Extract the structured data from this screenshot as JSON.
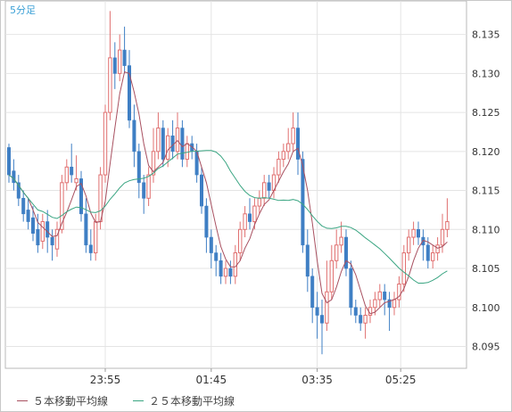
{
  "timeframe_label": "5分足",
  "chart_data": {
    "type": "candlestick",
    "x_tick_labels": [
      "23:55",
      "01:45",
      "03:35",
      "05:25"
    ],
    "y_ticks": [
      8.095,
      8.1,
      8.105,
      8.11,
      8.115,
      8.12,
      8.125,
      8.13,
      8.135
    ],
    "ylim": [
      8.0922,
      8.1393
    ],
    "grid": true,
    "legend_position": "bottom",
    "colors": {
      "up": "#e07070",
      "down": "#3f7fc4",
      "ma5": "#a85060",
      "ma25": "#3aa582",
      "label_accent": "#3ba0d6"
    },
    "candles": [
      [
        8.1205,
        8.117,
        8.121,
        8.116
      ],
      [
        8.1175,
        8.116,
        8.119,
        8.115
      ],
      [
        8.116,
        8.114,
        8.117,
        8.113
      ],
      [
        8.114,
        8.112,
        8.115,
        8.111
      ],
      [
        8.1125,
        8.111,
        8.114,
        8.11
      ],
      [
        8.1115,
        8.1095,
        8.113,
        8.1085
      ],
      [
        8.11,
        8.108,
        8.112,
        8.107
      ],
      [
        8.1085,
        8.111,
        8.112,
        8.1075
      ],
      [
        8.111,
        8.109,
        8.1125,
        8.107
      ],
      [
        8.109,
        8.108,
        8.11,
        8.106
      ],
      [
        8.1075,
        8.11,
        8.111,
        8.1065
      ],
      [
        8.11,
        8.116,
        8.117,
        8.1095
      ],
      [
        8.116,
        8.118,
        8.119,
        8.115
      ],
      [
        8.118,
        8.117,
        8.121,
        8.116
      ],
      [
        8.116,
        8.1165,
        8.1195,
        8.115
      ],
      [
        8.1165,
        8.112,
        8.1175,
        8.111
      ],
      [
        8.112,
        8.108,
        8.114,
        8.107
      ],
      [
        8.108,
        8.107,
        8.11,
        8.106
      ],
      [
        8.107,
        8.111,
        8.112,
        8.106
      ],
      [
        8.111,
        8.117,
        8.118,
        8.11
      ],
      [
        8.117,
        8.125,
        8.126,
        8.116
      ],
      [
        8.125,
        8.132,
        8.138,
        8.124
      ],
      [
        8.132,
        8.13,
        8.134,
        8.128
      ],
      [
        8.13,
        8.133,
        8.135,
        8.129
      ],
      [
        8.133,
        8.131,
        8.136,
        8.13
      ],
      [
        8.131,
        8.124,
        8.133,
        8.123
      ],
      [
        8.124,
        8.12,
        8.126,
        8.118
      ],
      [
        8.12,
        8.116,
        8.121,
        8.114
      ],
      [
        8.116,
        8.114,
        8.117,
        8.112
      ],
      [
        8.114,
        8.117,
        8.118,
        8.113
      ],
      [
        8.117,
        8.12,
        8.123,
        8.116
      ],
      [
        8.12,
        8.123,
        8.125,
        8.119
      ],
      [
        8.123,
        8.119,
        8.124,
        8.118
      ],
      [
        8.119,
        8.122,
        8.123,
        8.118
      ],
      [
        8.122,
        8.12,
        8.124,
        8.119
      ],
      [
        8.12,
        8.123,
        8.125,
        8.119
      ],
      [
        8.123,
        8.119,
        8.124,
        8.118
      ],
      [
        8.119,
        8.121,
        8.122,
        8.118
      ],
      [
        8.121,
        8.12,
        8.122,
        8.119
      ],
      [
        8.12,
        8.117,
        8.121,
        8.116
      ],
      [
        8.117,
        8.113,
        8.118,
        8.112
      ],
      [
        8.113,
        8.109,
        8.114,
        8.107
      ],
      [
        8.109,
        8.107,
        8.11,
        8.105
      ],
      [
        8.107,
        8.106,
        8.108,
        8.104
      ],
      [
        8.106,
        8.104,
        8.107,
        8.103
      ],
      [
        8.104,
        8.105,
        8.106,
        8.103
      ],
      [
        8.105,
        8.104,
        8.106,
        8.103
      ],
      [
        8.104,
        8.107,
        8.108,
        8.103
      ],
      [
        8.107,
        8.11,
        8.111,
        8.106
      ],
      [
        8.11,
        8.112,
        8.113,
        8.109
      ],
      [
        8.112,
        8.111,
        8.114,
        8.11
      ],
      [
        8.111,
        8.113,
        8.114,
        8.11
      ],
      [
        8.113,
        8.114,
        8.115,
        8.112
      ],
      [
        8.114,
        8.116,
        8.117,
        8.113
      ],
      [
        8.116,
        8.115,
        8.117,
        8.114
      ],
      [
        8.115,
        8.117,
        8.118,
        8.114
      ],
      [
        8.117,
        8.119,
        8.12,
        8.116
      ],
      [
        8.119,
        8.12,
        8.121,
        8.118
      ],
      [
        8.12,
        8.121,
        8.123,
        8.119
      ],
      [
        8.121,
        8.123,
        8.125,
        8.12
      ],
      [
        8.123,
        8.119,
        8.125,
        8.117
      ],
      [
        8.119,
        8.108,
        8.12,
        8.107
      ],
      [
        8.108,
        8.104,
        8.11,
        8.102
      ],
      [
        8.104,
        8.1,
        8.105,
        8.098
      ],
      [
        8.1,
        8.099,
        8.102,
        8.096
      ],
      [
        8.099,
        8.098,
        8.101,
        8.094
      ],
      [
        8.098,
        8.102,
        8.106,
        8.097
      ],
      [
        8.102,
        8.106,
        8.108,
        8.101
      ],
      [
        8.106,
        8.108,
        8.11,
        8.105
      ],
      [
        8.108,
        8.109,
        8.111,
        8.107
      ],
      [
        8.109,
        8.105,
        8.11,
        8.104
      ],
      [
        8.105,
        8.1,
        8.106,
        8.099
      ],
      [
        8.1,
        8.099,
        8.101,
        8.098
      ],
      [
        8.099,
        8.098,
        8.1,
        8.097
      ],
      [
        8.098,
        8.099,
        8.1,
        8.096
      ],
      [
        8.099,
        8.1,
        8.101,
        8.098
      ],
      [
        8.1,
        8.101,
        8.102,
        8.099
      ],
      [
        8.101,
        8.102,
        8.103,
        8.1
      ],
      [
        8.102,
        8.101,
        8.103,
        8.099
      ],
      [
        8.101,
        8.1,
        8.102,
        8.097
      ],
      [
        8.1,
        8.101,
        8.102,
        8.099
      ],
      [
        8.101,
        8.103,
        8.104,
        8.1
      ],
      [
        8.103,
        8.107,
        8.108,
        8.102
      ],
      [
        8.107,
        8.109,
        8.11,
        8.106
      ],
      [
        8.109,
        8.11,
        8.111,
        8.108
      ],
      [
        8.11,
        8.109,
        8.111,
        8.108
      ],
      [
        8.109,
        8.108,
        8.11,
        8.106
      ],
      [
        8.108,
        8.106,
        8.109,
        8.105
      ],
      [
        8.106,
        8.107,
        8.108,
        8.105
      ],
      [
        8.107,
        8.108,
        8.109,
        8.106
      ],
      [
        8.108,
        8.11,
        8.112,
        8.107
      ],
      [
        8.11,
        8.111,
        8.114,
        8.109
      ]
    ]
  },
  "legend": [
    {
      "label": "５本移動平均線",
      "color": "#a85060"
    },
    {
      "label": "２５本移動平均線",
      "color": "#3aa582"
    }
  ]
}
